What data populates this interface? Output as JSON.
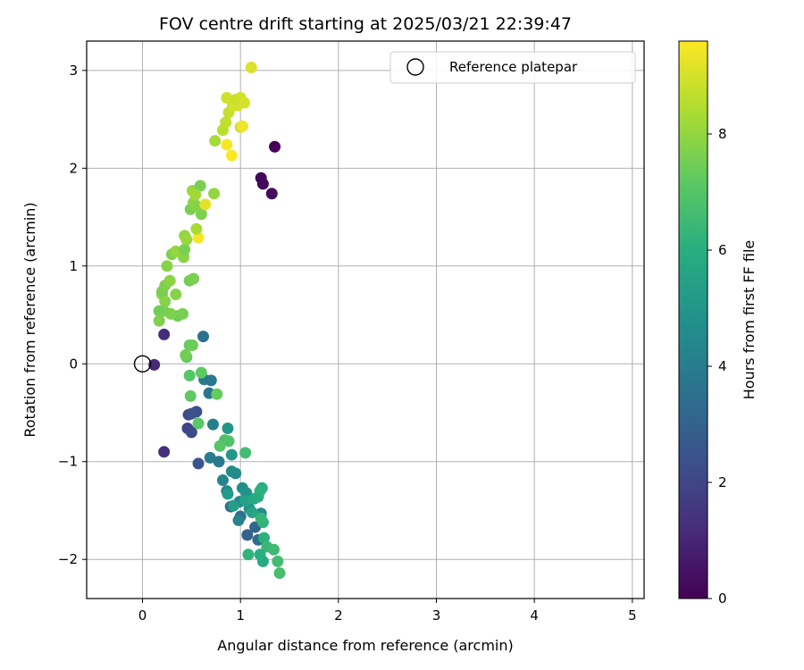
{
  "chart_data": {
    "type": "scatter",
    "title": "FOV centre drift starting at 2025/03/21 22:39:47",
    "xlabel": "Angular distance from reference (arcmin)",
    "ylabel": "Rotation from reference (arcmin)",
    "xlim": [
      -0.57,
      5.12
    ],
    "ylim": [
      -2.4,
      3.3
    ],
    "xticks": [
      0,
      1,
      2,
      3,
      4,
      5
    ],
    "yticks": [
      -2,
      -1,
      0,
      1,
      2,
      3
    ],
    "grid": true,
    "legend": {
      "placement": "top-right",
      "entries": [
        "Reference platepar"
      ]
    },
    "reference_point": {
      "x": 0,
      "y": 0
    },
    "colorbar": {
      "label": "Hours from first FF file",
      "range": [
        0,
        9.6
      ],
      "ticks": [
        0,
        2,
        4,
        6,
        8
      ],
      "colormap": "viridis"
    },
    "points": [
      {
        "x": 1.35,
        "y": 2.22,
        "c": 0.05
      },
      {
        "x": 1.21,
        "y": 1.9,
        "c": 0.15
      },
      {
        "x": 1.23,
        "y": 1.84,
        "c": 0.2
      },
      {
        "x": 1.32,
        "y": 1.74,
        "c": 0.3
      },
      {
        "x": 0.12,
        "y": -0.01,
        "c": 1.1
      },
      {
        "x": 0.22,
        "y": 0.3,
        "c": 1.2
      },
      {
        "x": 0.22,
        "y": -0.9,
        "c": 1.3
      },
      {
        "x": 0.46,
        "y": -0.66,
        "c": 2.0
      },
      {
        "x": 0.5,
        "y": -0.7,
        "c": 2.1
      },
      {
        "x": 0.47,
        "y": -0.52,
        "c": 2.2
      },
      {
        "x": 0.55,
        "y": -0.49,
        "c": 2.3
      },
      {
        "x": 0.5,
        "y": -0.51,
        "c": 2.4
      },
      {
        "x": 0.57,
        "y": -1.02,
        "c": 2.5
      },
      {
        "x": 1.07,
        "y": -1.75,
        "c": 3.0
      },
      {
        "x": 1.15,
        "y": -1.67,
        "c": 3.2
      },
      {
        "x": 0.9,
        "y": -1.46,
        "c": 3.3
      },
      {
        "x": 1.0,
        "y": -1.56,
        "c": 3.5
      },
      {
        "x": 1.18,
        "y": -1.8,
        "c": 3.4
      },
      {
        "x": 0.62,
        "y": 0.28,
        "c": 3.6
      },
      {
        "x": 0.7,
        "y": -0.17,
        "c": 3.8
      },
      {
        "x": 0.68,
        "y": -0.3,
        "c": 3.7
      },
      {
        "x": 0.63,
        "y": -0.16,
        "c": 3.9
      },
      {
        "x": 0.72,
        "y": -0.62,
        "c": 4.1
      },
      {
        "x": 0.69,
        "y": -0.96,
        "c": 4.0
      },
      {
        "x": 0.78,
        "y": -1.0,
        "c": 3.9
      },
      {
        "x": 0.82,
        "y": -1.19,
        "c": 4.3
      },
      {
        "x": 0.86,
        "y": -1.3,
        "c": 4.4
      },
      {
        "x": 0.95,
        "y": -1.12,
        "c": 4.5
      },
      {
        "x": 0.91,
        "y": -1.1,
        "c": 4.6
      },
      {
        "x": 0.99,
        "y": -1.41,
        "c": 4.4
      },
      {
        "x": 1.02,
        "y": -1.27,
        "c": 4.7
      },
      {
        "x": 1.06,
        "y": -1.32,
        "c": 4.8
      },
      {
        "x": 0.98,
        "y": -1.6,
        "c": 4.2
      },
      {
        "x": 1.09,
        "y": -1.48,
        "c": 4.9
      },
      {
        "x": 1.21,
        "y": -1.53,
        "c": 4.6
      },
      {
        "x": 0.87,
        "y": -0.66,
        "c": 5.0
      },
      {
        "x": 0.91,
        "y": -0.93,
        "c": 5.1
      },
      {
        "x": 0.87,
        "y": -1.33,
        "c": 5.2
      },
      {
        "x": 0.93,
        "y": -1.45,
        "c": 5.3
      },
      {
        "x": 1.05,
        "y": -1.4,
        "c": 5.5
      },
      {
        "x": 1.12,
        "y": -1.52,
        "c": 5.6
      },
      {
        "x": 1.14,
        "y": -1.38,
        "c": 5.8
      },
      {
        "x": 1.18,
        "y": -1.36,
        "c": 5.9
      },
      {
        "x": 1.22,
        "y": -1.27,
        "c": 6.0
      },
      {
        "x": 1.2,
        "y": -1.3,
        "c": 6.1
      },
      {
        "x": 1.23,
        "y": -1.62,
        "c": 6.2
      },
      {
        "x": 1.21,
        "y": -1.58,
        "c": 6.3
      },
      {
        "x": 1.24,
        "y": -1.78,
        "c": 6.1
      },
      {
        "x": 1.27,
        "y": -1.87,
        "c": 6.4
      },
      {
        "x": 1.23,
        "y": -2.02,
        "c": 5.9
      },
      {
        "x": 1.2,
        "y": -1.95,
        "c": 6.0
      },
      {
        "x": 1.08,
        "y": -1.95,
        "c": 6.2
      },
      {
        "x": 1.34,
        "y": -1.9,
        "c": 6.5
      },
      {
        "x": 1.38,
        "y": -2.02,
        "c": 6.6
      },
      {
        "x": 1.4,
        "y": -2.14,
        "c": 6.7
      },
      {
        "x": 1.05,
        "y": -0.91,
        "c": 6.6
      },
      {
        "x": 0.84,
        "y": -0.78,
        "c": 6.8
      },
      {
        "x": 0.88,
        "y": -0.79,
        "c": 6.9
      },
      {
        "x": 0.79,
        "y": -0.84,
        "c": 7.0
      },
      {
        "x": 0.57,
        "y": -0.61,
        "c": 7.1
      },
      {
        "x": 0.49,
        "y": -0.33,
        "c": 7.2
      },
      {
        "x": 0.76,
        "y": -0.31,
        "c": 7.3
      },
      {
        "x": 0.6,
        "y": -0.09,
        "c": 7.2
      },
      {
        "x": 0.45,
        "y": 0.07,
        "c": 7.1
      },
      {
        "x": 0.48,
        "y": -0.12,
        "c": 7.0
      },
      {
        "x": 0.48,
        "y": 0.19,
        "c": 7.3
      },
      {
        "x": 0.51,
        "y": 0.19,
        "c": 7.4
      },
      {
        "x": 0.44,
        "y": 0.09,
        "c": 7.5
      },
      {
        "x": 0.36,
        "y": 0.49,
        "c": 7.4
      },
      {
        "x": 0.41,
        "y": 0.51,
        "c": 7.6
      },
      {
        "x": 0.29,
        "y": 0.51,
        "c": 7.7
      },
      {
        "x": 0.22,
        "y": 0.54,
        "c": 7.6
      },
      {
        "x": 0.17,
        "y": 0.54,
        "c": 7.5
      },
      {
        "x": 0.17,
        "y": 0.44,
        "c": 7.7
      },
      {
        "x": 0.23,
        "y": 0.64,
        "c": 7.8
      },
      {
        "x": 0.2,
        "y": 0.71,
        "c": 7.9
      },
      {
        "x": 0.34,
        "y": 0.71,
        "c": 7.8
      },
      {
        "x": 0.2,
        "y": 0.74,
        "c": 7.6
      },
      {
        "x": 0.23,
        "y": 0.8,
        "c": 7.7
      },
      {
        "x": 0.28,
        "y": 0.85,
        "c": 7.9
      },
      {
        "x": 0.48,
        "y": 0.85,
        "c": 7.5
      },
      {
        "x": 0.52,
        "y": 0.87,
        "c": 7.6
      },
      {
        "x": 0.25,
        "y": 1.0,
        "c": 7.8
      },
      {
        "x": 0.42,
        "y": 1.09,
        "c": 7.9
      },
      {
        "x": 0.3,
        "y": 1.12,
        "c": 7.7
      },
      {
        "x": 0.34,
        "y": 1.15,
        "c": 8.0
      },
      {
        "x": 0.43,
        "y": 1.17,
        "c": 7.6
      },
      {
        "x": 0.43,
        "y": 1.31,
        "c": 8.0
      },
      {
        "x": 0.45,
        "y": 1.27,
        "c": 8.1
      },
      {
        "x": 0.57,
        "y": 1.29,
        "c": 9.5
      },
      {
        "x": 0.55,
        "y": 1.38,
        "c": 8.3
      },
      {
        "x": 0.6,
        "y": 1.53,
        "c": 7.7
      },
      {
        "x": 0.49,
        "y": 1.58,
        "c": 7.6
      },
      {
        "x": 0.52,
        "y": 1.65,
        "c": 7.9
      },
      {
        "x": 0.56,
        "y": 1.61,
        "c": 7.8
      },
      {
        "x": 0.64,
        "y": 1.63,
        "c": 9.2
      },
      {
        "x": 0.51,
        "y": 1.77,
        "c": 8.1
      },
      {
        "x": 0.59,
        "y": 1.82,
        "c": 7.6
      },
      {
        "x": 0.73,
        "y": 1.74,
        "c": 8.0
      },
      {
        "x": 0.54,
        "y": 1.73,
        "c": 8.2
      },
      {
        "x": 0.74,
        "y": 2.28,
        "c": 8.3
      },
      {
        "x": 0.82,
        "y": 2.39,
        "c": 8.6
      },
      {
        "x": 0.85,
        "y": 2.47,
        "c": 8.7
      },
      {
        "x": 0.88,
        "y": 2.57,
        "c": 8.8
      },
      {
        "x": 0.92,
        "y": 2.64,
        "c": 8.9
      },
      {
        "x": 0.97,
        "y": 2.64,
        "c": 9.0
      },
      {
        "x": 0.86,
        "y": 2.72,
        "c": 8.9
      },
      {
        "x": 0.95,
        "y": 2.7,
        "c": 8.8
      },
      {
        "x": 1.0,
        "y": 2.72,
        "c": 8.9
      },
      {
        "x": 1.04,
        "y": 2.67,
        "c": 9.0
      },
      {
        "x": 1.0,
        "y": 2.42,
        "c": 8.8
      },
      {
        "x": 1.02,
        "y": 2.43,
        "c": 9.4
      },
      {
        "x": 0.86,
        "y": 2.24,
        "c": 9.5
      },
      {
        "x": 0.91,
        "y": 2.13,
        "c": 9.6
      },
      {
        "x": 1.11,
        "y": 3.03,
        "c": 9.1
      }
    ]
  }
}
